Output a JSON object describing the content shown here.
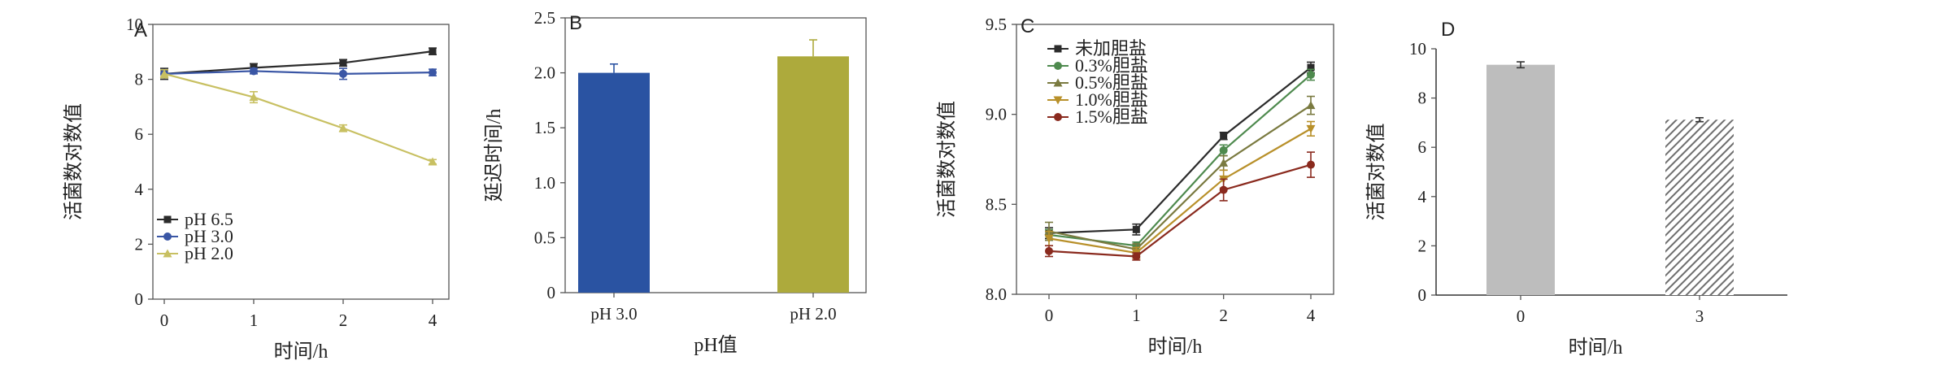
{
  "chart_data": [
    {
      "panel": "A",
      "type": "line",
      "x": [
        0,
        1,
        2,
        4
      ],
      "xlabel": "时间/h",
      "ylabel": "活菌数对数值",
      "ylim": [
        0,
        10
      ],
      "yticks": [
        0,
        2,
        4,
        6,
        8,
        10
      ],
      "series": [
        {
          "name": "pH 6.5",
          "color": "#2b2b2b",
          "marker": "square",
          "values": [
            8.2,
            8.42,
            8.6,
            9.02
          ],
          "errors": [
            0.2,
            0.15,
            0.12,
            0.12
          ]
        },
        {
          "name": "pH 3.0",
          "color": "#3a56a5",
          "marker": "circle",
          "values": [
            8.2,
            8.3,
            8.2,
            8.25
          ],
          "errors": [
            0.15,
            0.1,
            0.2,
            0.12
          ]
        },
        {
          "name": "pH 2.0",
          "color": "#c8c062",
          "marker": "triangle",
          "values": [
            8.2,
            7.35,
            6.22,
            5.0
          ],
          "errors": [
            0.15,
            0.2,
            0.12,
            0.08
          ]
        }
      ],
      "legend_position": "bottom-left"
    },
    {
      "panel": "B",
      "type": "bar",
      "categories": [
        "pH 3.0",
        "pH 2.0"
      ],
      "values": [
        2.0,
        2.15
      ],
      "errors": [
        0.08,
        0.15
      ],
      "colors": [
        "#2a53a2",
        "#adaa3c"
      ],
      "xlabel": "pH值",
      "ylabel": "延迟时间/h",
      "ylim": [
        0,
        2.5
      ],
      "yticks": [
        "0",
        "0.5",
        "1.0",
        "1.5",
        "2.0",
        "2.5"
      ]
    },
    {
      "panel": "C",
      "type": "line",
      "x": [
        0,
        1,
        2,
        4
      ],
      "xlabel": "时间/h",
      "ylabel": "活菌数对数值",
      "ylim": [
        8.0,
        9.5
      ],
      "yticks": [
        "8.0",
        "8.5",
        "9.0",
        "9.5"
      ],
      "series": [
        {
          "name": "未加胆盐",
          "color": "#2b2b2b",
          "marker": "square",
          "values": [
            8.34,
            8.36,
            8.88,
            9.26
          ],
          "errors": [
            0.03,
            0.03,
            0.02,
            0.03
          ]
        },
        {
          "name": "0.3%胆盐",
          "color": "#4e8a4e",
          "marker": "circle",
          "values": [
            8.33,
            8.27,
            8.8,
            9.22
          ],
          "errors": [
            0.03,
            0.02,
            0.03,
            0.03
          ]
        },
        {
          "name": "0.5%胆盐",
          "color": "#7a7a40",
          "marker": "triangle",
          "values": [
            8.35,
            8.25,
            8.73,
            9.05
          ],
          "errors": [
            0.05,
            0.03,
            0.04,
            0.05
          ]
        },
        {
          "name": "1.0%胆盐",
          "color": "#b8902a",
          "marker": "triangle-down",
          "values": [
            8.31,
            8.23,
            8.64,
            8.92
          ],
          "errors": [
            0.04,
            0.03,
            0.05,
            0.04
          ]
        },
        {
          "name": "1.5%胆盐",
          "color": "#8a2a1e",
          "marker": "circle",
          "values": [
            8.24,
            8.21,
            8.58,
            8.72
          ],
          "errors": [
            0.03,
            0.02,
            0.06,
            0.07
          ]
        }
      ],
      "legend_position": "top-left"
    },
    {
      "panel": "D",
      "type": "bar",
      "categories": [
        "0",
        "3"
      ],
      "values": [
        9.35,
        7.12
      ],
      "errors": [
        0.12,
        0.08
      ],
      "fills": [
        "solid-gray",
        "hatched"
      ],
      "colors": [
        "#bdbdbd",
        "#8a8a8a"
      ],
      "xlabel": "时间/h",
      "ylabel": "活菌对数值",
      "ylim": [
        0,
        10
      ],
      "yticks": [
        0,
        2,
        4,
        6,
        8,
        10
      ]
    }
  ]
}
